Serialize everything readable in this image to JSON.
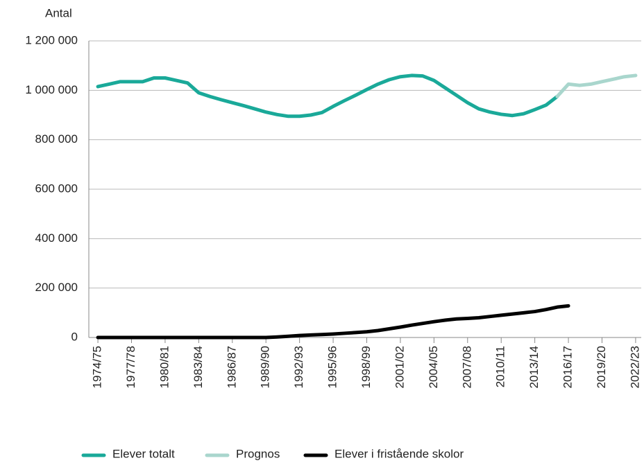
{
  "chart_data": {
    "type": "line",
    "y_label": "Antal",
    "categories": [
      "1974/75",
      null,
      null,
      "1977/78",
      null,
      null,
      "1980/81",
      null,
      null,
      "1983/84",
      null,
      null,
      "1986/87",
      null,
      null,
      "1989/90",
      null,
      null,
      "1992/93",
      null,
      null,
      "1995/96",
      null,
      null,
      "1998/99",
      null,
      null,
      "2001/02",
      null,
      null,
      "2004/05",
      null,
      null,
      "2007/08",
      null,
      null,
      "2010/11",
      null,
      null,
      "2013/14",
      null,
      null,
      "2016/17",
      null,
      null,
      "2019/20",
      null,
      null,
      "2022/23"
    ],
    "series": [
      {
        "name": "Elever totalt",
        "color": "#1aa999",
        "values": [
          1015000,
          1025000,
          1035000,
          1035000,
          1035000,
          1050000,
          1050000,
          1040000,
          1030000,
          990000,
          975000,
          962000,
          950000,
          938000,
          925000,
          912000,
          902000,
          895000,
          895000,
          900000,
          910000,
          935000,
          958000,
          980000,
          1003000,
          1025000,
          1043000,
          1055000,
          1060000,
          1058000,
          1040000,
          1010000,
          980000,
          950000,
          925000,
          912000,
          903000,
          898000,
          905000,
          922000,
          940000,
          975000,
          null,
          null,
          null,
          null,
          null,
          null,
          null
        ]
      },
      {
        "name": "Prognos",
        "color": "#a9d6cd",
        "values": [
          null,
          null,
          null,
          null,
          null,
          null,
          null,
          null,
          null,
          null,
          null,
          null,
          null,
          null,
          null,
          null,
          null,
          null,
          null,
          null,
          null,
          null,
          null,
          null,
          null,
          null,
          null,
          null,
          null,
          null,
          null,
          null,
          null,
          null,
          null,
          null,
          null,
          null,
          null,
          null,
          null,
          975000,
          1025000,
          1020000,
          1025000,
          1035000,
          1045000,
          1055000,
          1060000
        ]
      },
      {
        "name": "Elever i fristående skolor",
        "color": "#000000",
        "values": [
          0,
          0,
          0,
          0,
          0,
          0,
          0,
          0,
          0,
          0,
          0,
          0,
          0,
          0,
          0,
          0,
          2000,
          5000,
          8000,
          10000,
          12000,
          14000,
          17000,
          20000,
          23000,
          28000,
          35000,
          42000,
          50000,
          57000,
          64000,
          70000,
          75000,
          77000,
          80000,
          85000,
          90000,
          95000,
          100000,
          105000,
          113000,
          123000,
          128000,
          null,
          null,
          null,
          null,
          null,
          null
        ]
      }
    ],
    "ylim": [
      0,
      1200000
    ],
    "yticks": [
      0,
      {
        "value": 200000,
        "label": "200 000"
      },
      {
        "value": 400000,
        "label": "400 000"
      },
      {
        "value": 600000,
        "label": "600 000"
      },
      {
        "value": 800000,
        "label": "800 000"
      },
      {
        "value": 1000000,
        "label": "1 000 000"
      },
      {
        "value": 1200000,
        "label": "1 200 000"
      }
    ],
    "grid": true
  }
}
